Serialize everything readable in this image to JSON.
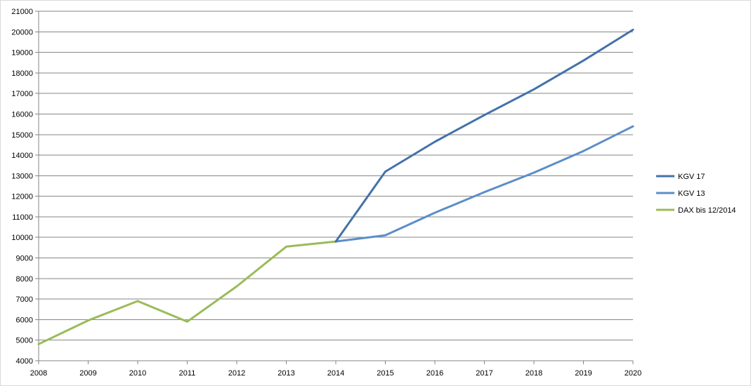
{
  "chart_data": {
    "type": "line",
    "title": "",
    "xlabel": "",
    "ylabel": "",
    "categories": [
      "2008",
      "2009",
      "2010",
      "2011",
      "2012",
      "2013",
      "2014",
      "2015",
      "2016",
      "2017",
      "2018",
      "2019",
      "2020"
    ],
    "ylim": [
      4000,
      21000
    ],
    "yticks": [
      4000,
      5000,
      6000,
      7000,
      8000,
      9000,
      10000,
      11000,
      12000,
      13000,
      14000,
      15000,
      16000,
      17000,
      18000,
      19000,
      20000,
      21000
    ],
    "grid": true,
    "legend_position": "right",
    "series": [
      {
        "name": "KGV 17",
        "color": "#4472a8",
        "values": [
          null,
          null,
          null,
          null,
          null,
          null,
          9800,
          13200,
          14650,
          15950,
          17200,
          18600,
          20100
        ]
      },
      {
        "name": "KGV 13",
        "color": "#5b8ec9",
        "values": [
          null,
          null,
          null,
          null,
          null,
          null,
          9800,
          10100,
          11200,
          12200,
          13150,
          14200,
          15400
        ]
      },
      {
        "name": "DAX bis 12/2014",
        "color": "#9bbb59",
        "values": [
          4810,
          5960,
          6900,
          5900,
          7620,
          9550,
          9800,
          null,
          null,
          null,
          null,
          null,
          null
        ]
      }
    ]
  }
}
